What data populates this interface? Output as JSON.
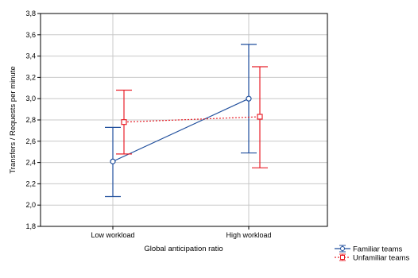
{
  "chart_data": {
    "type": "line",
    "title": "",
    "xlabel": "Global anticipation ratio",
    "ylabel": "Transfers / Requests per minute",
    "categories": [
      "Low workload",
      "High workload"
    ],
    "ylim": [
      1.8,
      3.8
    ],
    "yticks": [
      "1,8",
      "2,0",
      "2,2",
      "2,4",
      "2,6",
      "2,8",
      "3,0",
      "3,2",
      "3,4",
      "3,6",
      "3,8"
    ],
    "grid": true,
    "legend_position": "bottom-right, outside plot",
    "series": [
      {
        "name": "Familiar teams",
        "color": "#1f4e9c",
        "line_style": "solid",
        "marker": "circle",
        "values": [
          2.41,
          3.0
        ],
        "error_low": [
          2.08,
          2.49
        ],
        "error_high": [
          2.73,
          3.51
        ]
      },
      {
        "name": "Unfamiliar teams",
        "color": "#e8202a",
        "line_style": "dotted",
        "marker": "square",
        "values": [
          2.78,
          2.83
        ],
        "error_low": [
          2.48,
          2.35
        ],
        "error_high": [
          3.08,
          3.3
        ]
      }
    ]
  }
}
